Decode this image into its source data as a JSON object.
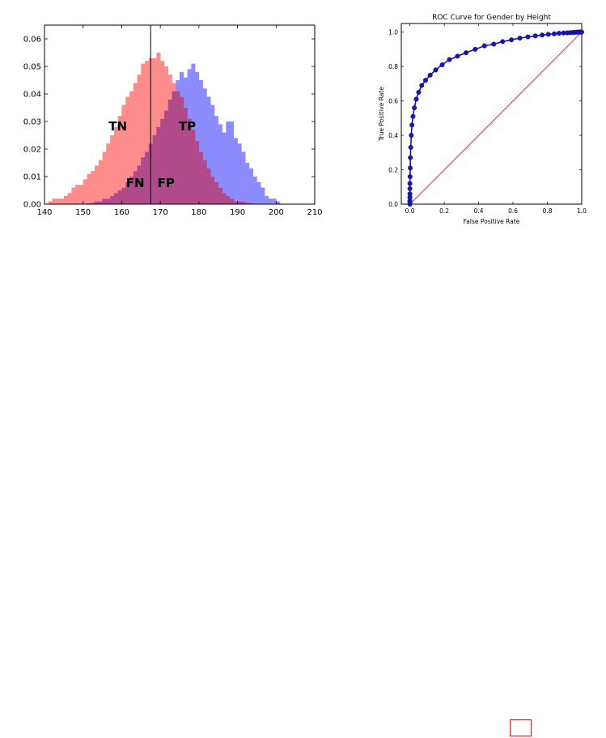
{
  "colors": {
    "female_fill": "#ff8c8c",
    "male_fill": "#8c8cff",
    "overlap_fill": "#b04a8a",
    "roc_line": "#1515b4",
    "diagonal": "#e21a1a",
    "marker_box": "#d62020"
  },
  "chart_data": [
    {
      "type": "bar",
      "subtype": "overlapping-histogram",
      "title": "",
      "xlabel": "",
      "ylabel": "",
      "xlim": [
        140,
        210
      ],
      "ylim": [
        0,
        0.065
      ],
      "x_ticks": [
        "140",
        "150",
        "160",
        "170",
        "180",
        "190",
        "200",
        "210"
      ],
      "y_ticks": [
        "0.00",
        "0.01",
        "0.02",
        "0.03",
        "0.04",
        "0.05",
        "0.06"
      ],
      "bin_start": 141,
      "bin_width": 1,
      "threshold": 167.5,
      "series": [
        {
          "values": [
            0.001,
            0.002,
            0.002,
            0.002,
            0.003,
            0.004,
            0.006,
            0.007,
            0.007,
            0.009,
            0.011,
            0.012,
            0.014,
            0.016,
            0.019,
            0.022,
            0.025,
            0.028,
            0.032,
            0.036,
            0.039,
            0.041,
            0.044,
            0.047,
            0.051,
            0.052,
            0.053,
            0.053,
            0.055,
            0.052,
            0.05,
            0.047,
            0.044,
            0.041,
            0.039,
            0.035,
            0.031,
            0.027,
            0.023,
            0.019,
            0.016,
            0.013,
            0.01,
            0.008,
            0.006,
            0.004,
            0.003,
            0.002,
            0.001,
            0.001,
            0.001,
            0.0005,
            0.0003,
            0.0002,
            0.0001,
            0,
            0,
            0,
            0,
            0
          ]
        },
        {
          "values": [
            0,
            0,
            0,
            0,
            0,
            0,
            0,
            0,
            0,
            0,
            0.0003,
            0.0005,
            0.001,
            0.001,
            0.002,
            0.002,
            0.003,
            0.004,
            0.005,
            0.006,
            0.008,
            0.01,
            0.012,
            0.014,
            0.017,
            0.019,
            0.022,
            0.025,
            0.028,
            0.031,
            0.034,
            0.038,
            0.041,
            0.045,
            0.048,
            0.046,
            0.049,
            0.051,
            0.048,
            0.045,
            0.042,
            0.039,
            0.036,
            0.032,
            0.029,
            0.026,
            0.03,
            0.03,
            0.024,
            0.022,
            0.019,
            0.015,
            0.013,
            0.01,
            0.008,
            0.006,
            0.003,
            0.002,
            0.002,
            0.001
          ]
        }
      ],
      "annotations": [
        {
          "text": "TN",
          "x": 159,
          "y": 0.0285
        },
        {
          "text": "TP",
          "x": 177,
          "y": 0.0285
        },
        {
          "text": "FN",
          "x": 163.5,
          "y": 0.008
        },
        {
          "text": "FP",
          "x": 171.5,
          "y": 0.008
        }
      ]
    },
    {
      "type": "line",
      "title": "ROC Curve for Gender by Height",
      "xlabel": "False Positive Rate",
      "ylabel": "True Positive Rate",
      "xlim": [
        -0.05,
        1.0
      ],
      "ylim": [
        0.0,
        1.05
      ],
      "x_ticks": [
        "0.0",
        "0.2",
        "0.4",
        "0.6",
        "0.8",
        "1.0"
      ],
      "y_ticks": [
        "0.0",
        "0.2",
        "0.4",
        "0.6",
        "0.8",
        "1.0"
      ],
      "x": [
        0.0,
        0.0,
        0.0,
        0.0,
        0.0,
        0.0,
        0.0,
        0.001,
        0.002,
        0.003,
        0.005,
        0.008,
        0.012,
        0.018,
        0.026,
        0.037,
        0.051,
        0.069,
        0.091,
        0.118,
        0.15,
        0.188,
        0.23,
        0.277,
        0.327,
        0.38,
        0.434,
        0.488,
        0.54,
        0.591,
        0.64,
        0.687,
        0.73,
        0.77,
        0.806,
        0.84,
        0.868,
        0.894,
        0.916,
        0.934,
        0.949,
        0.961,
        0.971,
        0.979,
        0.985,
        0.99,
        0.994,
        0.997,
        1.0
      ],
      "y": [
        0.0,
        0.01,
        0.02,
        0.04,
        0.06,
        0.09,
        0.12,
        0.16,
        0.21,
        0.27,
        0.33,
        0.4,
        0.46,
        0.51,
        0.56,
        0.61,
        0.65,
        0.69,
        0.72,
        0.75,
        0.78,
        0.81,
        0.84,
        0.86,
        0.88,
        0.9,
        0.92,
        0.93,
        0.945,
        0.955,
        0.965,
        0.972,
        0.978,
        0.983,
        0.987,
        0.99,
        0.993,
        0.995,
        0.996,
        0.997,
        0.998,
        0.999,
        0.999,
        1.0,
        1.0,
        1.0,
        1.0,
        1.0,
        1.0
      ],
      "reference_line": {
        "x": [
          0.0,
          1.0
        ],
        "y": [
          0.0,
          1.0
        ]
      }
    }
  ]
}
